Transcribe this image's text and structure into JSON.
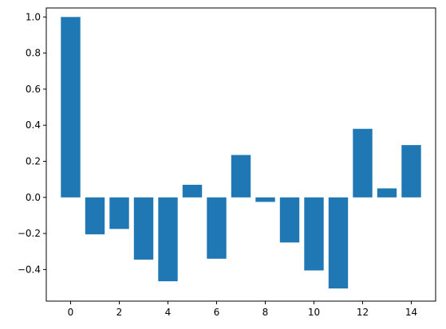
{
  "chart_data": {
    "type": "bar",
    "x": [
      0,
      1,
      2,
      3,
      4,
      5,
      6,
      7,
      8,
      9,
      10,
      11,
      12,
      13,
      14
    ],
    "values": [
      1.0,
      -0.205,
      -0.175,
      -0.345,
      -0.465,
      0.07,
      -0.34,
      0.235,
      -0.025,
      -0.25,
      -0.405,
      -0.505,
      0.38,
      0.05,
      0.29
    ],
    "bar_color": "#1f77b4",
    "xlim": [
      -1,
      15
    ],
    "ylim": [
      -0.575,
      1.05
    ],
    "xticks": [
      0,
      2,
      4,
      6,
      8,
      10,
      12,
      14
    ],
    "xtick_labels": [
      "0",
      "2",
      "4",
      "6",
      "8",
      "10",
      "12",
      "14"
    ],
    "yticks": [
      -0.4,
      -0.2,
      0.0,
      0.2,
      0.4,
      0.6,
      0.8,
      1.0
    ],
    "ytick_labels": [
      "−0.4",
      "−0.2",
      "0.0",
      "0.2",
      "0.4",
      "0.6",
      "0.8",
      "1.0"
    ],
    "grid": false,
    "title": "",
    "xlabel": "",
    "ylabel": ""
  }
}
